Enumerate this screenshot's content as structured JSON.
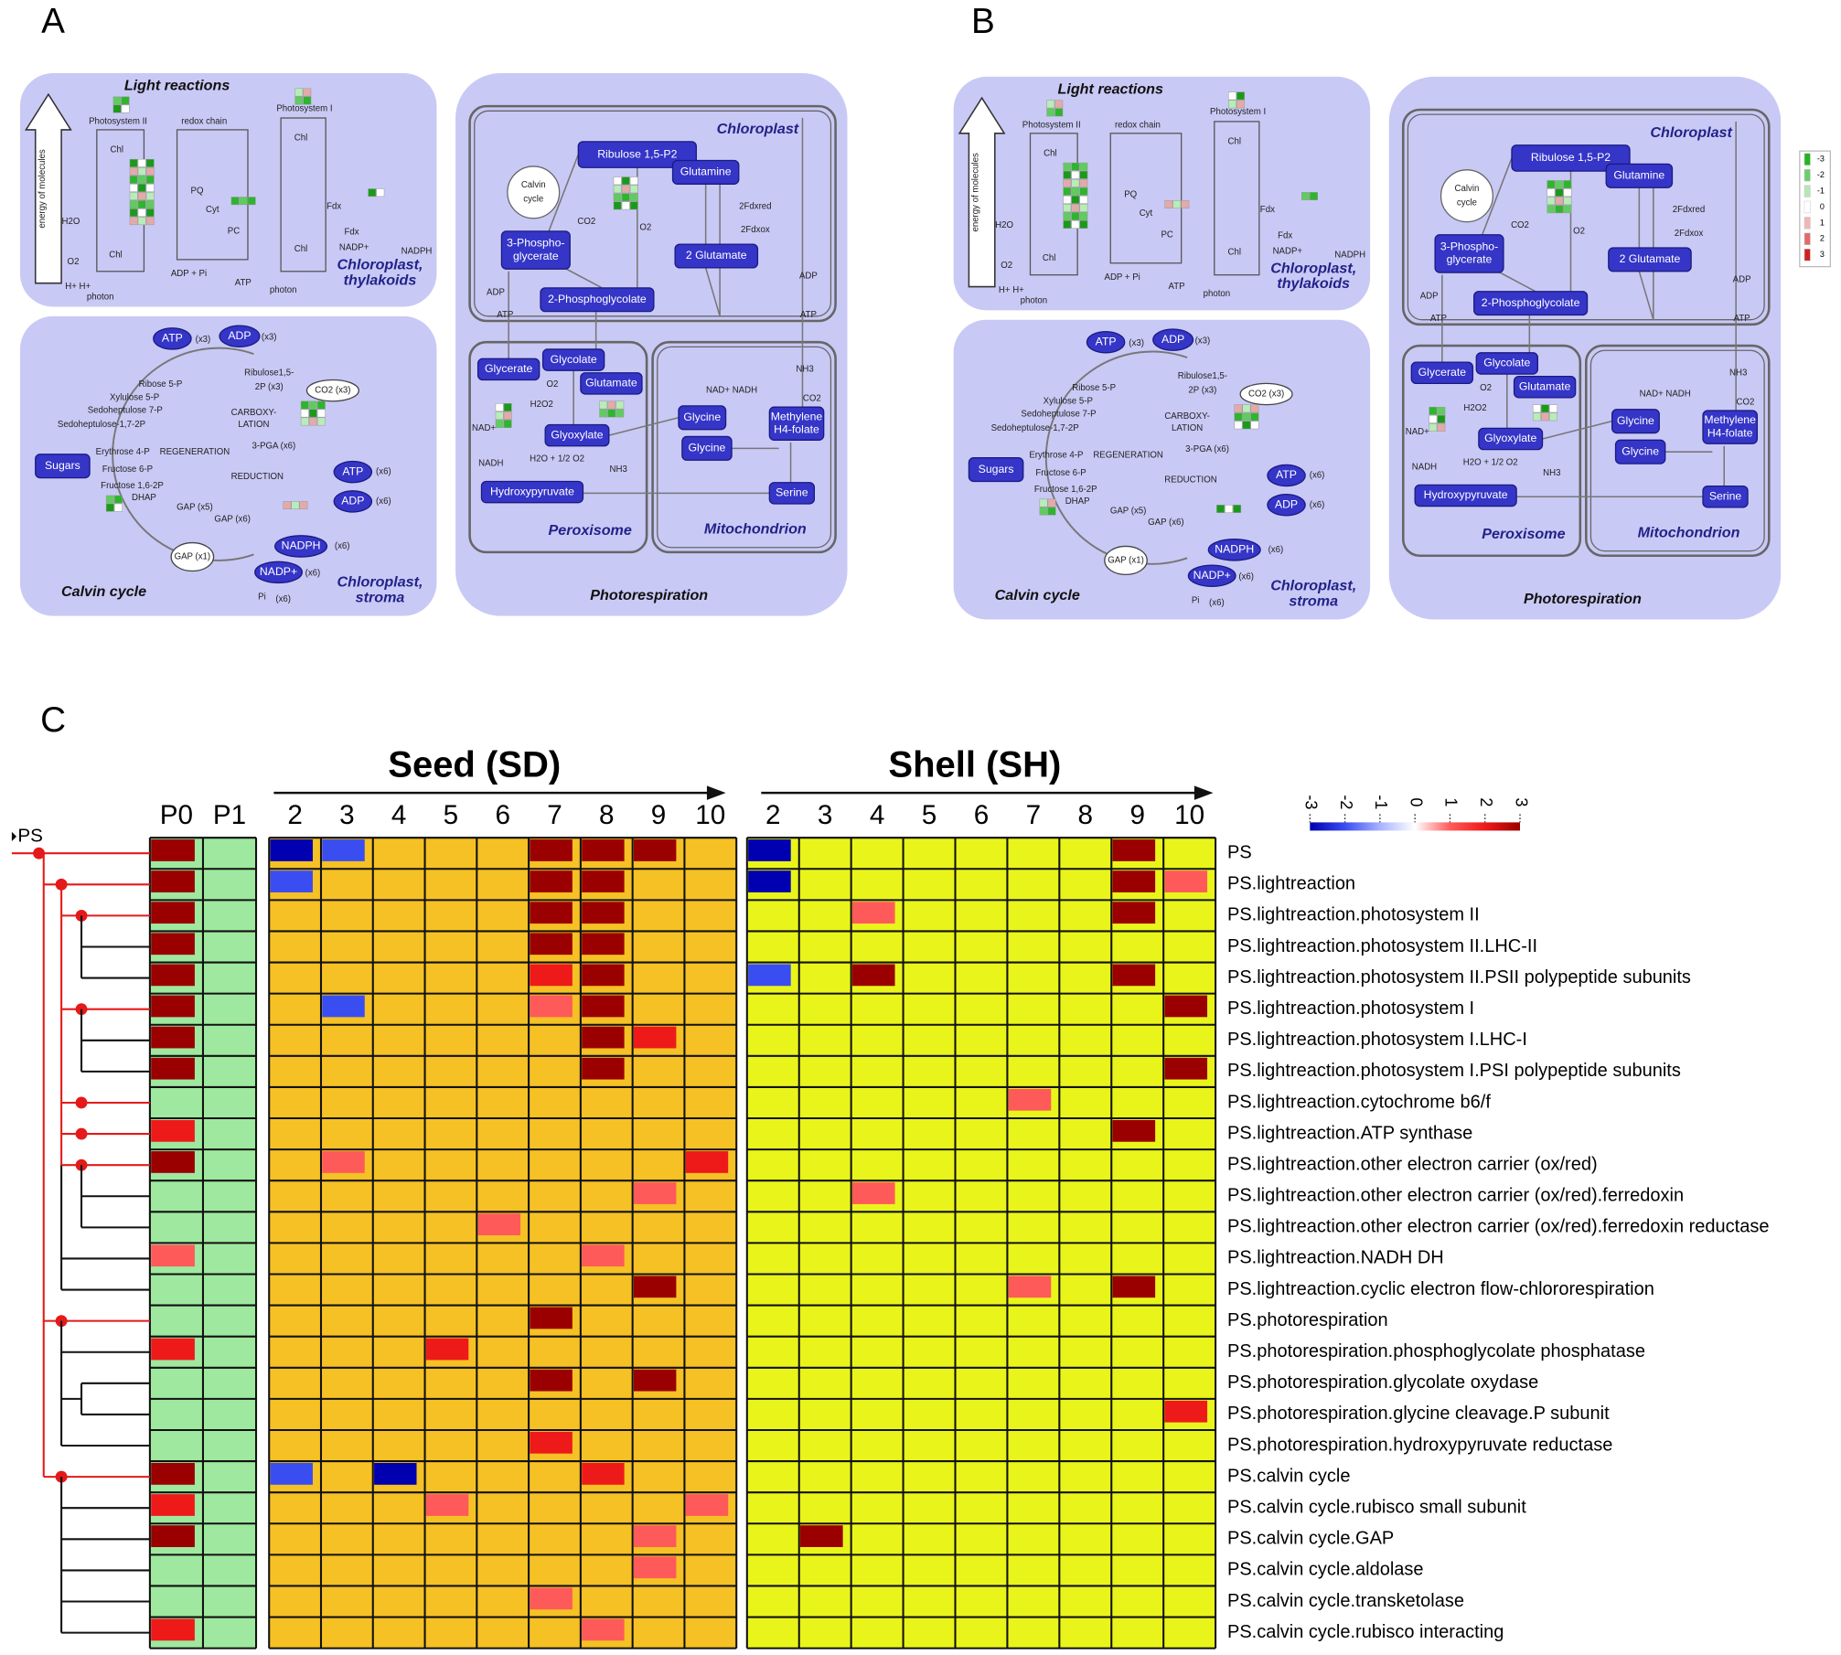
{
  "panel_letters": [
    "A",
    "B",
    "C"
  ],
  "pathway": {
    "boxes": [
      [
        "Ribulose 1,5-P2"
      ],
      [
        "Glutamine"
      ],
      [
        "3-Phospho-",
        "glycerate"
      ],
      [
        "2 Glutamate"
      ],
      [
        "2-Phosphoglycolate"
      ],
      [
        "Glycerate"
      ],
      [
        "Glycolate"
      ],
      [
        "Glutamate"
      ],
      [
        "Glyoxylate"
      ],
      [
        "Glycine"
      ],
      [
        "Glycine"
      ],
      [
        "Methylene",
        "H4-folate"
      ],
      [
        "Hydroxypyruvate"
      ],
      [
        "Serine"
      ],
      [
        "Sugars"
      ],
      [
        "ATP"
      ],
      [
        "ADP"
      ],
      [
        "ATP"
      ],
      [
        "ADP"
      ],
      [
        "NADPH"
      ],
      [
        "NADP+"
      ]
    ],
    "regions": [
      [
        "Light reactions"
      ],
      [
        "Chloroplast,",
        "thylakoids"
      ],
      [
        "Calvin cycle"
      ],
      [
        "Chloroplast,",
        "stroma"
      ],
      [
        "Photorespiration"
      ],
      [
        "Chloroplast"
      ],
      [
        "Peroxisome"
      ],
      [
        "Mitochondrion"
      ]
    ],
    "labels": [
      "energy of molecules",
      "Photosystem II",
      "redox chain",
      "Photosystem I",
      "Chl",
      "Chl",
      "Chl",
      "Chl",
      "PQ",
      "Cyt",
      "PC",
      "Fdx",
      "Fdx",
      "H2O",
      "O2",
      "H+ H+",
      "photon",
      "photon",
      "ADP + Pi",
      "ATP",
      "NADP+",
      "NADPH",
      "Calvin",
      "cycle",
      "CO2",
      "O2",
      "2Fdxred",
      "2Fdxox",
      "ADP",
      "ATP",
      "ADP",
      "ATP",
      "NH3",
      "CO2",
      "NAD+ NADH",
      "O2",
      "H2O2",
      "NAD+",
      "NADH",
      "H2O + 1/2 O2",
      "NH3",
      "Ribose 5-P",
      "Xylulose 5-P",
      "Sedoheptulose 7-P",
      "Sedoheptulose-1,7-2P",
      "Erythrose 4-P",
      "Fructose 6-P",
      "Fructose 1,6-2P",
      "DHAP",
      "Ribulose1,5-",
      "2P (x3)",
      "CARBOXY-",
      "LATION",
      "REGENERATION",
      "REDUCTION",
      "3-PGA (x6)",
      "GAP (x5)",
      "GAP (x6)",
      "GAP (x1)",
      "(x3)",
      "(x3)",
      "CO2 (x3)",
      "(x6)",
      "(x6)",
      "(x6)",
      "(x6)",
      "Pi",
      "(x6)"
    ],
    "legend_ticks": [
      -3,
      -2,
      -1,
      0,
      1,
      2,
      3
    ]
  },
  "heatmap": {
    "titles": [
      "Seed (SD)",
      "Shell (SH)"
    ],
    "root_label": "PS",
    "control_columns": [
      "P0",
      "P1"
    ],
    "seed_columns": [
      2,
      3,
      4,
      5,
      6,
      7,
      8,
      9,
      10
    ],
    "shell_columns": [
      2,
      3,
      4,
      5,
      6,
      7,
      8,
      9,
      10
    ],
    "scale_ticks": [
      -3,
      -2,
      -1,
      0,
      1,
      2,
      3
    ],
    "scale_colors": [
      "#0000b0",
      "#3a4df0",
      "#a8b2ff",
      "#ffffff",
      "#ff5a5a",
      "#ee1a1a",
      "#9b0000"
    ],
    "background_colors": {
      "control": "#9fe89f",
      "seed": "#f5c124",
      "shell": "#e9f51a"
    },
    "rows": [
      "PS",
      "PS.lightreaction",
      "PS.lightreaction.photosystem II",
      "PS.lightreaction.photosystem II.LHC-II",
      "PS.lightreaction.photosystem II.PSII polypeptide subunits",
      "PS.lightreaction.photosystem I",
      "PS.lightreaction.photosystem I.LHC-I",
      "PS.lightreaction.photosystem I.PSI polypeptide subunits",
      "PS.lightreaction.cytochrome b6/f",
      "PS.lightreaction.ATP synthase",
      "PS.lightreaction.other electron carrier (ox/red)",
      "PS.lightreaction.other electron carrier (ox/red).ferredoxin",
      "PS.lightreaction.other electron carrier (ox/red).ferredoxin reductase",
      "PS.lightreaction.NADH DH",
      "PS.lightreaction.cyclic electron flow-chlororespiration",
      "PS.photorespiration",
      "PS.photorespiration.phosphoglycolate phosphatase",
      "PS.photorespiration.glycolate oxydase",
      "PS.photorespiration.glycine cleavage.P subunit",
      "PS.photorespiration.hydroxypyruvate reductase",
      "PS.calvin cycle",
      "PS.calvin cycle.rubisco small subunit",
      "PS.calvin cycle.GAP",
      "PS.calvin cycle.aldolase",
      "PS.calvin cycle.transketolase",
      "PS.calvin cycle.rubisco interacting"
    ],
    "control_values": [
      [
        3,
        null
      ],
      [
        3,
        null
      ],
      [
        3,
        null
      ],
      [
        3,
        null
      ],
      [
        3,
        null
      ],
      [
        3,
        null
      ],
      [
        3,
        null
      ],
      [
        3,
        null
      ],
      [
        null,
        null
      ],
      [
        2,
        null
      ],
      [
        3,
        null
      ],
      [
        null,
        null
      ],
      [
        null,
        null
      ],
      [
        1,
        null
      ],
      [
        null,
        null
      ],
      [
        null,
        null
      ],
      [
        2,
        null
      ],
      [
        null,
        null
      ],
      [
        null,
        null
      ],
      [
        null,
        null
      ],
      [
        3,
        null
      ],
      [
        2,
        null
      ],
      [
        3,
        null
      ],
      [
        null,
        null
      ],
      [
        null,
        null
      ],
      [
        2,
        null
      ]
    ],
    "seed_values": [
      [
        -3,
        -2,
        null,
        null,
        null,
        3,
        3,
        3,
        null
      ],
      [
        -2,
        null,
        null,
        null,
        null,
        3,
        3,
        null,
        null
      ],
      [
        null,
        null,
        null,
        null,
        null,
        3,
        3,
        null,
        null
      ],
      [
        null,
        null,
        null,
        null,
        null,
        3,
        3,
        null,
        null
      ],
      [
        null,
        null,
        null,
        null,
        null,
        2,
        3,
        null,
        null
      ],
      [
        null,
        -2,
        null,
        null,
        null,
        1,
        3,
        null,
        null
      ],
      [
        null,
        null,
        null,
        null,
        null,
        null,
        3,
        2,
        null
      ],
      [
        null,
        null,
        null,
        null,
        null,
        null,
        3,
        null,
        null
      ],
      [
        null,
        null,
        null,
        null,
        null,
        null,
        null,
        null,
        null
      ],
      [
        null,
        null,
        null,
        null,
        null,
        null,
        null,
        null,
        null
      ],
      [
        null,
        1,
        null,
        null,
        null,
        null,
        null,
        null,
        2
      ],
      [
        null,
        null,
        null,
        null,
        null,
        null,
        null,
        1,
        null
      ],
      [
        null,
        null,
        null,
        null,
        1,
        null,
        null,
        null,
        null
      ],
      [
        null,
        null,
        null,
        null,
        null,
        null,
        1,
        null,
        null
      ],
      [
        null,
        null,
        null,
        null,
        null,
        null,
        null,
        3,
        null
      ],
      [
        null,
        null,
        null,
        null,
        null,
        3,
        null,
        null,
        null
      ],
      [
        null,
        null,
        null,
        2,
        null,
        null,
        null,
        null,
        null
      ],
      [
        null,
        null,
        null,
        null,
        null,
        3,
        null,
        3,
        null
      ],
      [
        null,
        null,
        null,
        null,
        null,
        null,
        null,
        null,
        null
      ],
      [
        null,
        null,
        null,
        null,
        null,
        2,
        null,
        null,
        null
      ],
      [
        -2,
        null,
        -3,
        null,
        null,
        null,
        2,
        null,
        null
      ],
      [
        null,
        null,
        null,
        1,
        null,
        null,
        null,
        null,
        1
      ],
      [
        null,
        null,
        null,
        null,
        null,
        null,
        null,
        1,
        null
      ],
      [
        null,
        null,
        null,
        null,
        null,
        null,
        null,
        1,
        null
      ],
      [
        null,
        null,
        null,
        null,
        null,
        1,
        null,
        null,
        null
      ],
      [
        null,
        null,
        null,
        null,
        null,
        null,
        1,
        null,
        null
      ]
    ],
    "shell_values": [
      [
        -3,
        null,
        null,
        null,
        null,
        null,
        null,
        3,
        null
      ],
      [
        -3,
        null,
        null,
        null,
        null,
        null,
        null,
        3,
        1
      ],
      [
        null,
        null,
        1,
        null,
        null,
        null,
        null,
        3,
        null
      ],
      [
        null,
        null,
        null,
        null,
        null,
        null,
        null,
        null,
        null
      ],
      [
        -2,
        null,
        3,
        null,
        null,
        null,
        null,
        3,
        null
      ],
      [
        null,
        null,
        null,
        null,
        null,
        null,
        null,
        null,
        3
      ],
      [
        null,
        null,
        null,
        null,
        null,
        null,
        null,
        null,
        null
      ],
      [
        null,
        null,
        null,
        null,
        null,
        null,
        null,
        null,
        3
      ],
      [
        null,
        null,
        null,
        null,
        null,
        1,
        null,
        null,
        null
      ],
      [
        null,
        null,
        null,
        null,
        null,
        null,
        null,
        3,
        null
      ],
      [
        null,
        null,
        null,
        null,
        null,
        null,
        null,
        null,
        null
      ],
      [
        null,
        null,
        1,
        null,
        null,
        null,
        null,
        null,
        null
      ],
      [
        null,
        null,
        null,
        null,
        null,
        null,
        null,
        null,
        null
      ],
      [
        null,
        null,
        null,
        null,
        null,
        null,
        null,
        null,
        null
      ],
      [
        null,
        null,
        null,
        null,
        null,
        1,
        null,
        3,
        null
      ],
      [
        null,
        null,
        null,
        null,
        null,
        null,
        null,
        null,
        null
      ],
      [
        null,
        null,
        null,
        null,
        null,
        null,
        null,
        null,
        null
      ],
      [
        null,
        null,
        null,
        null,
        null,
        null,
        null,
        null,
        null
      ],
      [
        null,
        null,
        null,
        null,
        null,
        null,
        null,
        null,
        2
      ],
      [
        null,
        null,
        null,
        null,
        null,
        null,
        null,
        null,
        null
      ],
      [
        null,
        null,
        null,
        null,
        null,
        null,
        null,
        null,
        null
      ],
      [
        null,
        null,
        null,
        null,
        null,
        null,
        null,
        null,
        null
      ],
      [
        null,
        3,
        null,
        null,
        null,
        null,
        null,
        null,
        null
      ],
      [
        null,
        null,
        null,
        null,
        null,
        null,
        null,
        null,
        null
      ],
      [
        null,
        null,
        null,
        null,
        null,
        null,
        null,
        null,
        null
      ],
      [
        null,
        null,
        null,
        null,
        null,
        null,
        null,
        null,
        null
      ]
    ]
  }
}
